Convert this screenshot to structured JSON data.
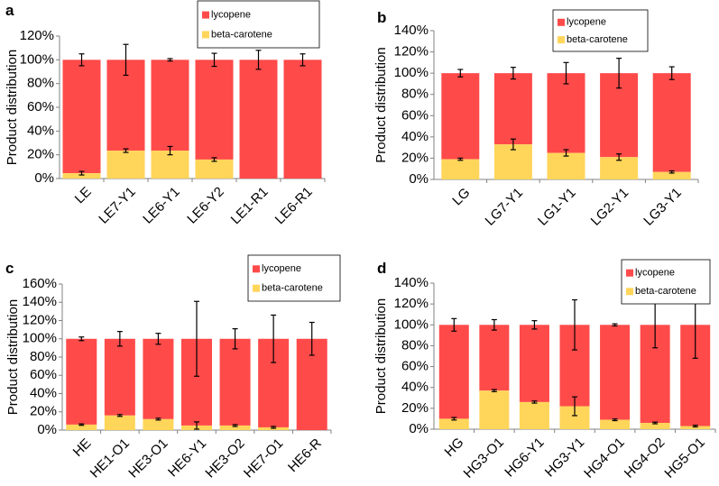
{
  "colors": {
    "lycopene": "#ff4a4a",
    "beta": "#ffd55a",
    "axis": "#808080",
    "error": "#000000"
  },
  "chart_data": [
    {
      "id": "a",
      "type": "bar",
      "stacked": true,
      "panel_label": "a",
      "ylabel": "Product distribution",
      "ylim": [
        0,
        120
      ],
      "yticks": [
        "0%",
        "20%",
        "40%",
        "60%",
        "80%",
        "100%",
        "120%"
      ],
      "legend": [
        "lycopene",
        "beta-carotene"
      ],
      "legend_position": "top-right",
      "categories": [
        "LE",
        "LE7-Y1",
        "LE6-Y1",
        "LE6-Y2",
        "LE1-R1",
        "LE6-R1"
      ],
      "series": [
        {
          "name": "beta-carotene",
          "values": [
            4.5,
            23.5,
            23.5,
            16,
            0,
            0
          ],
          "errors": [
            1.5,
            1.5,
            3.5,
            1.5,
            0,
            0
          ]
        },
        {
          "name": "lycopene",
          "values": [
            95.5,
            76.5,
            76.5,
            84,
            100,
            100
          ],
          "errors": [
            5,
            13,
            1,
            5.5,
            8,
            5
          ]
        }
      ]
    },
    {
      "id": "b",
      "type": "bar",
      "stacked": true,
      "panel_label": "b",
      "ylabel": "Product distribution",
      "ylim": [
        0,
        140
      ],
      "yticks": [
        "0%",
        "20%",
        "40%",
        "60%",
        "80%",
        "100%",
        "120%",
        "140%"
      ],
      "legend": [
        "lycopene",
        "beta-carotene"
      ],
      "legend_position": "top-right",
      "categories": [
        "LG",
        "LG7-Y1",
        "LG1-Y1",
        "LG2-Y1",
        "LG3-Y1"
      ],
      "series": [
        {
          "name": "beta-carotene",
          "values": [
            19,
            33,
            25,
            21,
            7
          ],
          "errors": [
            1,
            5,
            3,
            3,
            1
          ]
        },
        {
          "name": "lycopene",
          "values": [
            81,
            67,
            75,
            79,
            93
          ],
          "errors": [
            3.5,
            5.5,
            10,
            14,
            6
          ]
        }
      ]
    },
    {
      "id": "c",
      "type": "bar",
      "stacked": true,
      "panel_label": "c",
      "ylabel": "Product distribution",
      "ylim": [
        0,
        160
      ],
      "yticks": [
        "0%",
        "20%",
        "40%",
        "60%",
        "80%",
        "100%",
        "120%",
        "140%",
        "160%"
      ],
      "legend": [
        "lycopene",
        "beta-carotene"
      ],
      "legend_position": "top-right",
      "categories": [
        "HE",
        "HE1-O1",
        "HE3-O1",
        "HE6-Y1",
        "HE3-O2",
        "HE7-O1",
        "HE6-R"
      ],
      "series": [
        {
          "name": "beta-carotene",
          "values": [
            6,
            16,
            12,
            5,
            5,
            3,
            0
          ],
          "errors": [
            0.8,
            1,
            1,
            4,
            1,
            1,
            0
          ]
        },
        {
          "name": "lycopene",
          "values": [
            94,
            84,
            88,
            95,
            95,
            97,
            100
          ],
          "errors": [
            2,
            8,
            6,
            41,
            11,
            26,
            18
          ]
        }
      ]
    },
    {
      "id": "d",
      "type": "bar",
      "stacked": true,
      "panel_label": "d",
      "ylabel": "Product distribution",
      "ylim": [
        0,
        140
      ],
      "yticks": [
        "0%",
        "20%",
        "40%",
        "60%",
        "80%",
        "100%",
        "120%",
        "140%"
      ],
      "legend": [
        "lycopene",
        "beta-carotene"
      ],
      "legend_position": "top-right",
      "categories": [
        "HG",
        "HG3-O1",
        "HG6-Y1",
        "HG3-Y1",
        "HG4-O1",
        "HG4-O2",
        "HG5-O1"
      ],
      "series": [
        {
          "name": "beta-carotene",
          "values": [
            10,
            37,
            26,
            22,
            9,
            6,
            3
          ],
          "errors": [
            1.2,
            1,
            1,
            9,
            0.8,
            0.8,
            0.8
          ]
        },
        {
          "name": "lycopene",
          "values": [
            90,
            63,
            74,
            78,
            91,
            94,
            97
          ],
          "errors": [
            6,
            5,
            4,
            24,
            1,
            22,
            32
          ]
        }
      ]
    }
  ]
}
